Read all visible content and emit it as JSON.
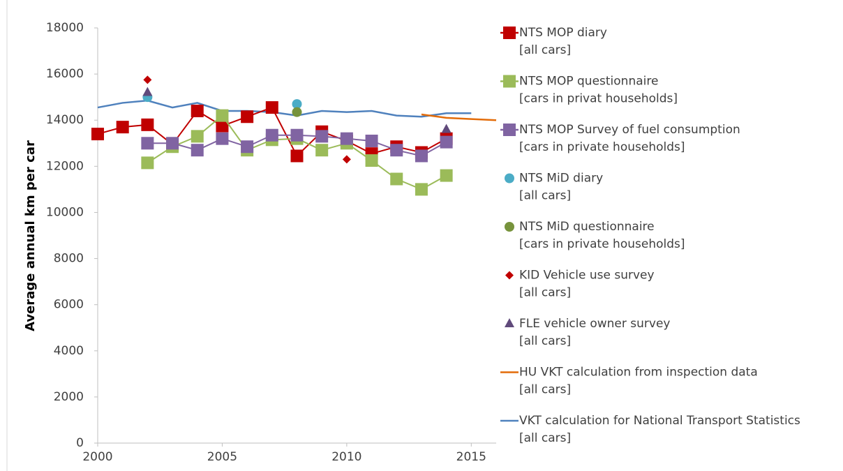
{
  "chart_data": {
    "type": "line",
    "y_label": "Average annual km per car",
    "xlim": [
      2000,
      2016
    ],
    "xticks": [
      2000,
      2005,
      2010,
      2015
    ],
    "ylim": [
      0,
      18000
    ],
    "yticks": [
      0,
      2000,
      4000,
      6000,
      8000,
      10000,
      12000,
      14000,
      16000,
      18000
    ],
    "series": [
      {
        "name": "NTS MOP diary",
        "detail": "[all cars]",
        "color": "#c00000",
        "marker": "square",
        "line": true,
        "x": [
          2000,
          2001,
          2002,
          2003,
          2004,
          2005,
          2006,
          2007,
          2008,
          2009,
          2010,
          2011,
          2012,
          2013,
          2014
        ],
        "values": [
          13400,
          13700,
          13800,
          12950,
          14400,
          13750,
          14150,
          14550,
          12450,
          13500,
          13100,
          12550,
          12850,
          12600,
          13200
        ]
      },
      {
        "name": "NTS MOP questionnaire",
        "detail": "[cars in privat households]",
        "color": "#9bbb59",
        "marker": "square",
        "line": true,
        "x": [
          2002,
          2003,
          2004,
          2005,
          2006,
          2007,
          2008,
          2009,
          2010,
          2011,
          2012,
          2013,
          2014
        ],
        "values": [
          12150,
          12850,
          13300,
          14200,
          12700,
          13150,
          13200,
          12700,
          13000,
          12250,
          11450,
          11000,
          11600
        ]
      },
      {
        "name": "NTS MOP Survey of fuel consumption",
        "detail": "[cars in private households]",
        "color": "#8064a2",
        "marker": "square",
        "line": true,
        "x": [
          2002,
          2003,
          2004,
          2005,
          2006,
          2007,
          2008,
          2009,
          2010,
          2011,
          2012,
          2013,
          2014
        ],
        "values": [
          13000,
          13000,
          12700,
          13200,
          12850,
          13350,
          13350,
          13300,
          13200,
          13100,
          12700,
          12450,
          13050
        ]
      },
      {
        "name": "NTS MiD diary",
        "detail": "[all cars]",
        "color": "#4bacc6",
        "marker": "circle",
        "line": false,
        "x": [
          2002,
          2008
        ],
        "values": [
          15000,
          14700
        ]
      },
      {
        "name": "NTS MiD questionnaire",
        "detail": "[cars in private households]",
        "color": "#77933c",
        "marker": "circle",
        "line": false,
        "x": [
          2008
        ],
        "values": [
          14350
        ]
      },
      {
        "name": "KID Vehicle use survey",
        "detail": "[all cars]",
        "color": "#c00000",
        "marker": "diamond",
        "line": false,
        "x": [
          2002,
          2010
        ],
        "values": [
          15750,
          12300
        ]
      },
      {
        "name": "FLE vehicle owner survey",
        "detail": "[all cars]",
        "color": "#604a7b",
        "marker": "triangle",
        "line": false,
        "x": [
          2002,
          2014
        ],
        "values": [
          15200,
          13600
        ]
      },
      {
        "name": "HU VKT calculation from inspection data",
        "detail": "[all cars]",
        "color": "#e36c09",
        "marker": null,
        "line": true,
        "x": [
          2013,
          2014,
          2015,
          2016
        ],
        "values": [
          14250,
          14100,
          14050,
          14000
        ]
      },
      {
        "name": "VKT calculation for National Transport Statistics",
        "detail": "[all cars]",
        "color": "#4f81bd",
        "marker": null,
        "line": true,
        "x": [
          2000,
          2001,
          2002,
          2003,
          2004,
          2005,
          2006,
          2007,
          2008,
          2009,
          2010,
          2011,
          2012,
          2013,
          2014,
          2015
        ],
        "values": [
          14550,
          14750,
          14850,
          14550,
          14750,
          14400,
          14400,
          14350,
          14200,
          14400,
          14350,
          14400,
          14200,
          14150,
          14300,
          14300
        ]
      }
    ]
  }
}
